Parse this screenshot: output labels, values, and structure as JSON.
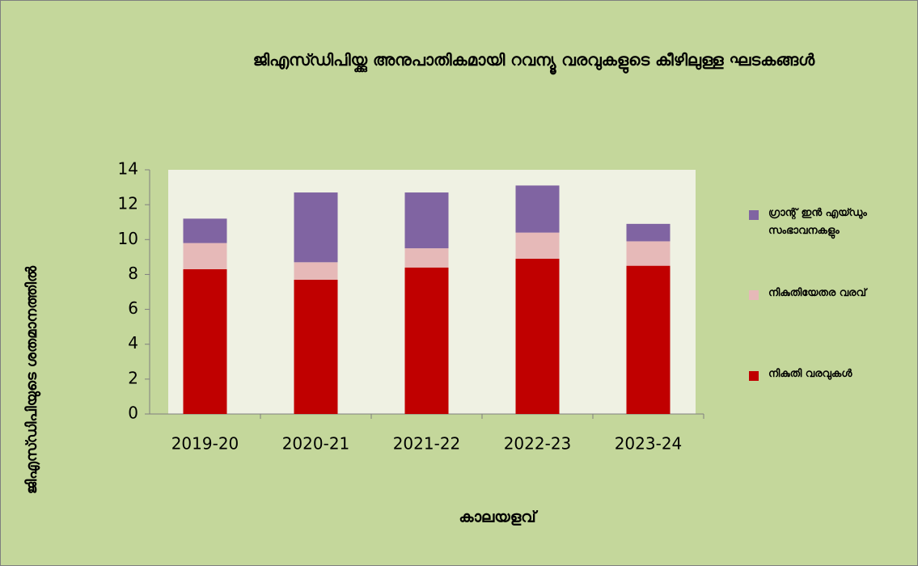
{
  "chart_data": {
    "type": "stacked_bar",
    "title": "ജിഎസ്ഡിപിയ്ക്കു അനുപാതികമായി റവന്യൂ വരവുകളുടെ കീഴിലുള്ള ഘടകങ്ങൾ",
    "x_label": "കാലയളവ്",
    "y_label": "ജിഎസ്ഡിപിയുടെ ശതമാനത്തിൽ",
    "categories": [
      "2019-20",
      "2020-21",
      "2021-22",
      "2022-23",
      "2023-24"
    ],
    "series": [
      {
        "name": "നികുതി വരവുകൾ",
        "color": "#c00000",
        "values": [
          8.3,
          7.7,
          8.4,
          8.9,
          8.5
        ]
      },
      {
        "name": "നികുതിയേതര വരവ്",
        "color": "#e6b9b8",
        "values": [
          1.5,
          1.0,
          1.1,
          1.5,
          1.4
        ]
      },
      {
        "name": "ഗ്രാന്റ് ഇൻ എയ്ഡും സംഭാവനകളും",
        "color": "#8064a2",
        "values": [
          1.4,
          4.0,
          3.2,
          2.7,
          1.0
        ]
      }
    ],
    "ylim": [
      0,
      14
    ],
    "yticks": [
      0,
      2,
      4,
      6,
      8,
      10,
      12,
      14
    ],
    "legend": "right"
  }
}
